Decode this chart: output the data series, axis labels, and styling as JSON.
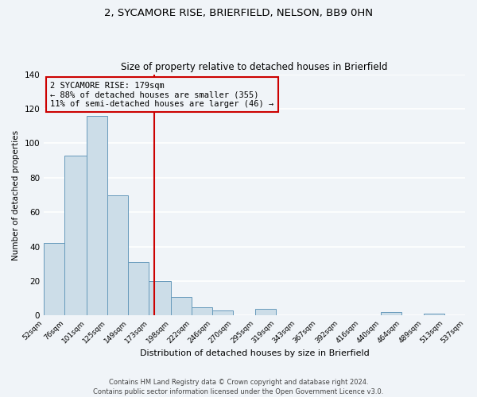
{
  "title1": "2, SYCAMORE RISE, BRIERFIELD, NELSON, BB9 0HN",
  "title2": "Size of property relative to detached houses in Brierfield",
  "xlabel": "Distribution of detached houses by size in Brierfield",
  "ylabel": "Number of detached properties",
  "bin_edges": [
    52,
    76,
    101,
    125,
    149,
    173,
    198,
    222,
    246,
    270,
    295,
    319,
    343,
    367,
    392,
    416,
    440,
    464,
    489,
    513,
    537
  ],
  "bar_heights": [
    42,
    93,
    116,
    70,
    31,
    20,
    11,
    5,
    3,
    0,
    4,
    0,
    0,
    0,
    0,
    0,
    2,
    0,
    1,
    0
  ],
  "bar_color": "#ccdde8",
  "bar_edge_color": "#6699bb",
  "vline_x": 179,
  "vline_color": "#cc0000",
  "annotation_box_color": "#cc0000",
  "annotation_lines": [
    "2 SYCAMORE RISE: 179sqm",
    "← 88% of detached houses are smaller (355)",
    "11% of semi-detached houses are larger (46) →"
  ],
  "ylim": [
    0,
    140
  ],
  "yticks": [
    0,
    20,
    40,
    60,
    80,
    100,
    120,
    140
  ],
  "tick_labels": [
    "52sqm",
    "76sqm",
    "101sqm",
    "125sqm",
    "149sqm",
    "173sqm",
    "198sqm",
    "222sqm",
    "246sqm",
    "270sqm",
    "295sqm",
    "319sqm",
    "343sqm",
    "367sqm",
    "392sqm",
    "416sqm",
    "440sqm",
    "464sqm",
    "489sqm",
    "513sqm",
    "537sqm"
  ],
  "footer_line1": "Contains HM Land Registry data © Crown copyright and database right 2024.",
  "footer_line2": "Contains public sector information licensed under the Open Government Licence v3.0.",
  "background_color": "#f0f4f8",
  "grid_color": "#ffffff",
  "title1_fontsize": 9.5,
  "title2_fontsize": 8.5,
  "annot_fontsize": 7.5,
  "footer_fontsize": 6.0,
  "ylabel_fontsize": 7.5,
  "xlabel_fontsize": 8.0
}
